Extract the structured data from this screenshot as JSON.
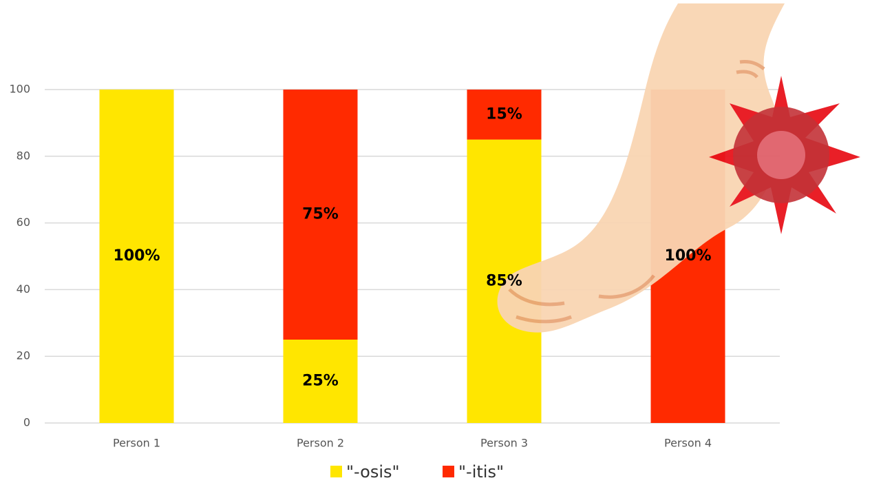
{
  "chart_data": {
    "type": "stacked_bar",
    "categories": [
      "Person 1",
      "Person 2",
      "Person 3",
      "Person 4"
    ],
    "series": [
      {
        "name": "\"-osis\"",
        "color": "#ffe600",
        "values": [
          100,
          25,
          85,
          0
        ],
        "value_labels": [
          "100%",
          "25%",
          "85%",
          null
        ]
      },
      {
        "name": "\"-itis\"",
        "color": "#ff2a00",
        "values": [
          0,
          75,
          15,
          100
        ],
        "value_labels": [
          null,
          "75%",
          "15%",
          "100%"
        ]
      }
    ],
    "ylim": [
      0,
      100
    ],
    "yticks": [
      0,
      20,
      40,
      60,
      80,
      100
    ],
    "grid": true,
    "legend": "bottom"
  }
}
